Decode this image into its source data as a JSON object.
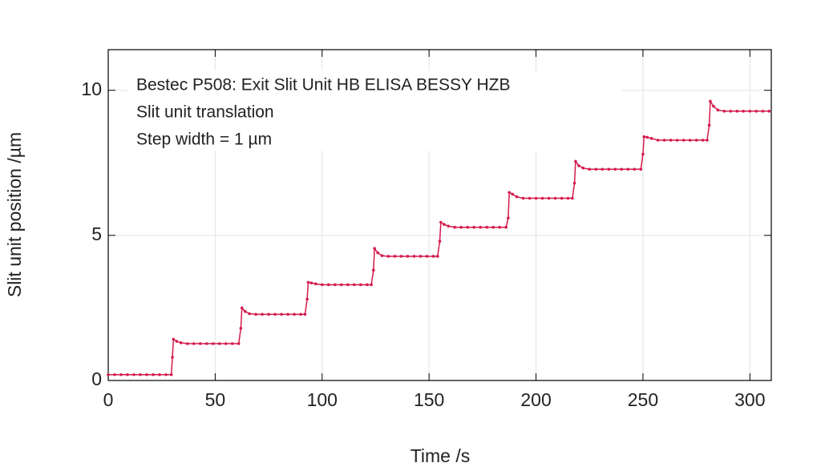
{
  "chart_data": {
    "type": "line",
    "annotations": [
      "Bestec P508: Exit Slit Unit HB ELISA BESSY HZB",
      "Slit unit translation",
      "Step width = 1 µm"
    ],
    "xlabel": "Time /s",
    "ylabel": "Slit unit position /µm",
    "xlim": [
      0,
      310
    ],
    "ylim": [
      0,
      11.4
    ],
    "xticks": [
      0,
      50,
      100,
      150,
      200,
      250,
      300
    ],
    "yticks": [
      0,
      5,
      10
    ],
    "grid": true,
    "x": [
      0,
      3,
      6,
      9,
      12,
      15,
      18,
      21,
      24,
      27,
      29.5,
      30,
      30.5,
      32,
      34,
      37,
      40,
      43,
      46,
      49,
      52,
      55,
      58,
      61,
      62,
      62.5,
      64,
      66,
      69,
      72,
      75,
      78,
      81,
      84,
      87,
      90,
      92,
      93,
      93.5,
      95,
      97,
      100,
      103,
      106,
      109,
      112,
      115,
      118,
      121,
      123,
      124,
      124.5,
      126,
      128,
      131,
      134,
      137,
      140,
      143,
      146,
      149,
      152,
      154,
      155,
      155.5,
      157,
      159,
      162,
      165,
      168,
      171,
      174,
      177,
      180,
      183,
      186,
      187,
      187.5,
      189,
      191,
      194,
      197,
      200,
      203,
      206,
      209,
      212,
      215,
      217,
      218,
      218.5,
      220,
      222,
      225,
      228,
      231,
      234,
      237,
      240,
      243,
      246,
      249,
      250,
      250.5,
      252,
      254,
      257,
      260,
      263,
      266,
      269,
      272,
      275,
      278,
      280,
      281,
      281.5,
      283,
      285,
      288,
      291,
      294,
      297,
      300,
      303,
      306,
      309
    ],
    "series": [
      {
        "color": "#d41a4c",
        "values": [
          0.2,
          0.2,
          0.2,
          0.2,
          0.2,
          0.2,
          0.2,
          0.2,
          0.2,
          0.2,
          0.2,
          0.8,
          1.42,
          1.35,
          1.3,
          1.27,
          1.27,
          1.27,
          1.27,
          1.27,
          1.27,
          1.27,
          1.27,
          1.27,
          1.8,
          2.5,
          2.38,
          2.3,
          2.28,
          2.28,
          2.28,
          2.28,
          2.28,
          2.28,
          2.28,
          2.28,
          2.28,
          2.8,
          3.38,
          3.36,
          3.33,
          3.3,
          3.3,
          3.3,
          3.3,
          3.3,
          3.3,
          3.3,
          3.3,
          3.3,
          3.8,
          4.55,
          4.4,
          4.3,
          4.28,
          4.28,
          4.28,
          4.28,
          4.28,
          4.28,
          4.28,
          4.28,
          4.28,
          4.8,
          5.45,
          5.38,
          5.32,
          5.28,
          5.28,
          5.28,
          5.28,
          5.28,
          5.28,
          5.28,
          5.28,
          5.28,
          5.6,
          6.48,
          6.42,
          6.33,
          6.28,
          6.28,
          6.28,
          6.28,
          6.28,
          6.28,
          6.28,
          6.28,
          6.28,
          6.8,
          7.55,
          7.4,
          7.32,
          7.28,
          7.28,
          7.28,
          7.28,
          7.28,
          7.28,
          7.28,
          7.28,
          7.28,
          7.8,
          8.4,
          8.38,
          8.34,
          8.28,
          8.28,
          8.28,
          8.28,
          8.28,
          8.28,
          8.28,
          8.28,
          8.28,
          8.8,
          9.62,
          9.45,
          9.32,
          9.28,
          9.28,
          9.28,
          9.28,
          9.28,
          9.28,
          9.28,
          9.28
        ]
      }
    ]
  }
}
